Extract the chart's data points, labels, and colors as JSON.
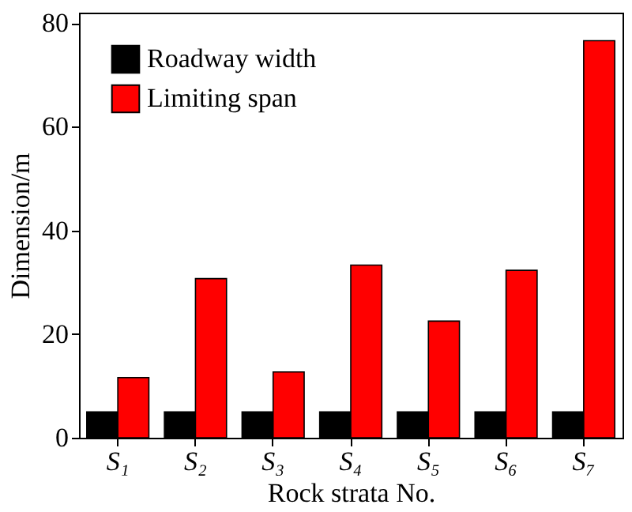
{
  "chart_data": {
    "type": "bar",
    "xlabel": "Rock strata No.",
    "ylabel": "Dimension/m",
    "categories": [
      "S₁",
      "S₂",
      "S₃",
      "S₄",
      "S₅",
      "S₆",
      "S₇"
    ],
    "series": [
      {
        "name": "Roadway width",
        "color": "#000000",
        "values": [
          5,
          5,
          5,
          5,
          5,
          5,
          5
        ]
      },
      {
        "name": "Limiting span",
        "color": "#ff0000",
        "values": [
          11.6,
          30.7,
          12.7,
          33.3,
          22.5,
          32.3,
          76.6
        ]
      }
    ],
    "ylim": [
      0,
      82
    ],
    "yticks": [
      0,
      20,
      40,
      60,
      80
    ],
    "grid": false,
    "legend": "top left"
  }
}
